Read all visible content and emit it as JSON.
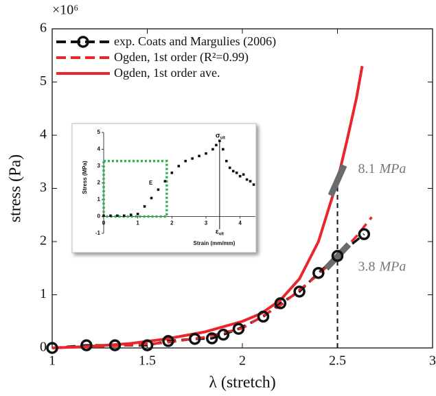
{
  "chart_data": [
    {
      "type": "line",
      "x_label": "λ (stretch)",
      "y_label": "stress (Pa)",
      "y_multiplier": "×10⁶",
      "xlim": [
        1,
        3
      ],
      "xticks": [
        1,
        1.5,
        2,
        2.5,
        3
      ],
      "ylim": [
        0,
        6
      ],
      "yticks": [
        0,
        1,
        2,
        3,
        4,
        5,
        6
      ],
      "legend": "upper left",
      "series": [
        {
          "name": "exp. Coats and Margulies (2006)",
          "color": "#111111",
          "style": "dashed-marker",
          "x": [
            1.0,
            1.18,
            1.33,
            1.5,
            1.61,
            1.75,
            1.84,
            1.9,
            1.98,
            2.11,
            2.2,
            2.3,
            2.4,
            2.5,
            2.64
          ],
          "values": [
            0,
            0.05,
            0.05,
            0.05,
            0.13,
            0.17,
            0.18,
            0.25,
            0.36,
            0.59,
            0.84,
            1.06,
            1.41,
            1.73,
            2.14
          ]
        },
        {
          "name": "Ogden, 1st order (R²=0.99)",
          "color": "#e8262b",
          "style": "dashed",
          "x": [
            1.0,
            1.2,
            1.4,
            1.6,
            1.8,
            2.0,
            2.2,
            2.4,
            2.5,
            2.6,
            2.68
          ],
          "values": [
            0,
            0.02,
            0.05,
            0.1,
            0.2,
            0.37,
            0.8,
            1.38,
            1.72,
            2.1,
            2.46
          ]
        },
        {
          "name": "Ogden, 1st order ave.",
          "color": "#e8262b",
          "style": "solid",
          "x": [
            1.0,
            1.2,
            1.4,
            1.6,
            1.8,
            2.0,
            2.1,
            2.2,
            2.3,
            2.4,
            2.5,
            2.55,
            2.6,
            2.63
          ],
          "values": [
            0,
            0.03,
            0.08,
            0.17,
            0.3,
            0.5,
            0.65,
            0.9,
            1.3,
            2.0,
            3.15,
            3.9,
            4.7,
            5.3
          ]
        }
      ],
      "tangents": [
        {
          "x": 2.5,
          "y": 3.15,
          "slope": 8.1,
          "unit": "MPa"
        },
        {
          "x": 2.5,
          "y": 1.72,
          "slope": 3.8,
          "unit": "MPa"
        }
      ]
    },
    {
      "type": "scatter",
      "x_label": "Strain (mm/mm)",
      "y_label": "Stress (MPa)",
      "xlim": [
        0,
        4.45
      ],
      "xticks": [
        0,
        1,
        2,
        3,
        4
      ],
      "ylim": [
        -1,
        5
      ],
      "yticks": [
        -1,
        0,
        1,
        2,
        3,
        4,
        5
      ],
      "color": "#111111",
      "x": [
        0,
        0.2,
        0.4,
        0.6,
        0.8,
        1.0,
        1.2,
        1.4,
        1.6,
        1.8,
        2.0,
        2.2,
        2.4,
        2.6,
        2.8,
        3.0,
        3.2,
        3.3,
        3.4,
        3.5,
        3.6,
        3.7,
        3.8,
        3.9,
        4.0,
        4.1,
        4.2,
        4.3,
        4.4
      ],
      "values": [
        0.05,
        0.05,
        0.05,
        0.05,
        0.1,
        0.15,
        0.6,
        1.1,
        1.6,
        2.1,
        2.6,
        3.0,
        3.3,
        3.45,
        3.6,
        3.75,
        4.0,
        4.25,
        4.5,
        4.0,
        3.3,
        2.9,
        2.7,
        2.6,
        2.4,
        2.5,
        2.2,
        2.1,
        1.9
      ],
      "modulus_box": {
        "label": "E",
        "x": [
          0,
          1.85
        ],
        "y": [
          0,
          3.3
        ]
      },
      "ultimate": {
        "x": 3.4,
        "y": 4.5,
        "stress_label": "σ",
        "strain_label": "ε",
        "subscript": "ult"
      }
    }
  ]
}
